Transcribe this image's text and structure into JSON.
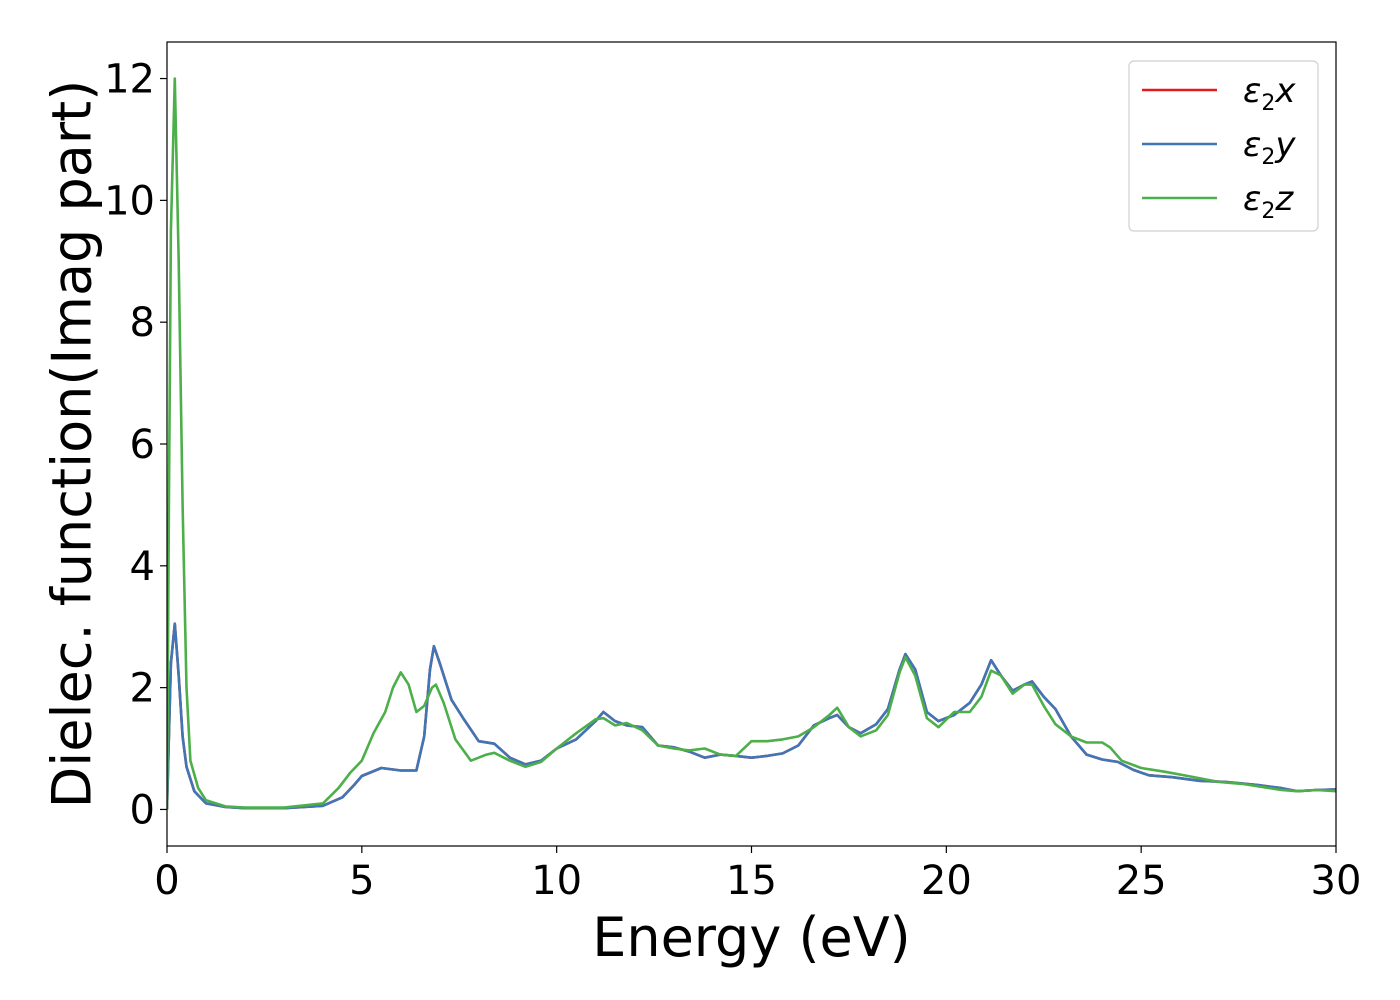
{
  "chart_data": {
    "type": "line",
    "title": "",
    "xlabel": "Energy (eV)",
    "ylabel": "Dielec. function(Imag part)",
    "xlim": [
      0,
      30
    ],
    "ylim": [
      -0.6,
      12.6
    ],
    "xticks": [
      0,
      5,
      10,
      15,
      20,
      25,
      30
    ],
    "yticks": [
      0,
      2,
      4,
      6,
      8,
      10,
      12
    ],
    "grid": false,
    "legend_position": "top-right",
    "series": [
      {
        "name": "ε₂x",
        "legend_main": "ε",
        "legend_sub": "2",
        "legend_suffix": "x",
        "color": "#e41a1c",
        "points": [
          [
            0,
            0
          ],
          [
            0.05,
            1.2
          ],
          [
            0.1,
            2.4
          ],
          [
            0.2,
            3.05
          ],
          [
            0.3,
            2.2
          ],
          [
            0.4,
            1.2
          ],
          [
            0.5,
            0.7
          ],
          [
            0.7,
            0.3
          ],
          [
            1.0,
            0.1
          ],
          [
            1.5,
            0.04
          ],
          [
            2.0,
            0.02
          ],
          [
            3.0,
            0.02
          ],
          [
            4.0,
            0.06
          ],
          [
            4.5,
            0.2
          ],
          [
            4.8,
            0.4
          ],
          [
            5.0,
            0.55
          ],
          [
            5.5,
            0.68
          ],
          [
            6.0,
            0.64
          ],
          [
            6.4,
            0.64
          ],
          [
            6.6,
            1.2
          ],
          [
            6.75,
            2.3
          ],
          [
            6.85,
            2.68
          ],
          [
            7.0,
            2.4
          ],
          [
            7.3,
            1.8
          ],
          [
            7.6,
            1.5
          ],
          [
            8.0,
            1.12
          ],
          [
            8.4,
            1.08
          ],
          [
            8.8,
            0.85
          ],
          [
            9.2,
            0.74
          ],
          [
            9.6,
            0.8
          ],
          [
            10.0,
            1.0
          ],
          [
            10.5,
            1.15
          ],
          [
            11.0,
            1.45
          ],
          [
            11.2,
            1.6
          ],
          [
            11.5,
            1.45
          ],
          [
            11.8,
            1.38
          ],
          [
            12.2,
            1.35
          ],
          [
            12.6,
            1.05
          ],
          [
            13.0,
            1.02
          ],
          [
            13.4,
            0.95
          ],
          [
            13.8,
            0.85
          ],
          [
            14.2,
            0.9
          ],
          [
            14.6,
            0.88
          ],
          [
            15.0,
            0.85
          ],
          [
            15.4,
            0.88
          ],
          [
            15.8,
            0.92
          ],
          [
            16.2,
            1.05
          ],
          [
            16.6,
            1.38
          ],
          [
            17.0,
            1.5
          ],
          [
            17.2,
            1.55
          ],
          [
            17.5,
            1.35
          ],
          [
            17.8,
            1.25
          ],
          [
            18.2,
            1.4
          ],
          [
            18.5,
            1.65
          ],
          [
            18.8,
            2.3
          ],
          [
            18.95,
            2.55
          ],
          [
            19.2,
            2.3
          ],
          [
            19.5,
            1.6
          ],
          [
            19.8,
            1.45
          ],
          [
            20.2,
            1.55
          ],
          [
            20.6,
            1.75
          ],
          [
            20.9,
            2.05
          ],
          [
            21.15,
            2.45
          ],
          [
            21.4,
            2.2
          ],
          [
            21.7,
            1.95
          ],
          [
            22.0,
            2.05
          ],
          [
            22.2,
            2.1
          ],
          [
            22.5,
            1.85
          ],
          [
            22.8,
            1.65
          ],
          [
            23.2,
            1.2
          ],
          [
            23.6,
            0.9
          ],
          [
            24.0,
            0.82
          ],
          [
            24.4,
            0.78
          ],
          [
            24.8,
            0.65
          ],
          [
            25.2,
            0.56
          ],
          [
            25.8,
            0.53
          ],
          [
            26.5,
            0.47
          ],
          [
            27.2,
            0.45
          ],
          [
            28.0,
            0.4
          ],
          [
            28.6,
            0.35
          ],
          [
            29.0,
            0.3
          ],
          [
            29.5,
            0.32
          ],
          [
            30.0,
            0.33
          ]
        ]
      },
      {
        "name": "ε₂y",
        "legend_main": "ε",
        "legend_sub": "2",
        "legend_suffix": "y",
        "color": "#3f76b6",
        "points": [
          [
            0,
            0
          ],
          [
            0.05,
            1.2
          ],
          [
            0.1,
            2.4
          ],
          [
            0.2,
            3.05
          ],
          [
            0.3,
            2.2
          ],
          [
            0.4,
            1.2
          ],
          [
            0.5,
            0.7
          ],
          [
            0.7,
            0.3
          ],
          [
            1.0,
            0.1
          ],
          [
            1.5,
            0.04
          ],
          [
            2.0,
            0.02
          ],
          [
            3.0,
            0.02
          ],
          [
            4.0,
            0.06
          ],
          [
            4.5,
            0.2
          ],
          [
            4.8,
            0.4
          ],
          [
            5.0,
            0.55
          ],
          [
            5.5,
            0.68
          ],
          [
            6.0,
            0.64
          ],
          [
            6.4,
            0.64
          ],
          [
            6.6,
            1.2
          ],
          [
            6.75,
            2.3
          ],
          [
            6.85,
            2.68
          ],
          [
            7.0,
            2.4
          ],
          [
            7.3,
            1.8
          ],
          [
            7.6,
            1.5
          ],
          [
            8.0,
            1.12
          ],
          [
            8.4,
            1.08
          ],
          [
            8.8,
            0.85
          ],
          [
            9.2,
            0.74
          ],
          [
            9.6,
            0.8
          ],
          [
            10.0,
            1.0
          ],
          [
            10.5,
            1.15
          ],
          [
            11.0,
            1.45
          ],
          [
            11.2,
            1.6
          ],
          [
            11.5,
            1.45
          ],
          [
            11.8,
            1.38
          ],
          [
            12.2,
            1.35
          ],
          [
            12.6,
            1.05
          ],
          [
            13.0,
            1.02
          ],
          [
            13.4,
            0.95
          ],
          [
            13.8,
            0.85
          ],
          [
            14.2,
            0.9
          ],
          [
            14.6,
            0.88
          ],
          [
            15.0,
            0.85
          ],
          [
            15.4,
            0.88
          ],
          [
            15.8,
            0.92
          ],
          [
            16.2,
            1.05
          ],
          [
            16.6,
            1.38
          ],
          [
            17.0,
            1.5
          ],
          [
            17.2,
            1.55
          ],
          [
            17.5,
            1.35
          ],
          [
            17.8,
            1.25
          ],
          [
            18.2,
            1.4
          ],
          [
            18.5,
            1.65
          ],
          [
            18.8,
            2.3
          ],
          [
            18.95,
            2.55
          ],
          [
            19.2,
            2.3
          ],
          [
            19.5,
            1.6
          ],
          [
            19.8,
            1.45
          ],
          [
            20.2,
            1.55
          ],
          [
            20.6,
            1.75
          ],
          [
            20.9,
            2.05
          ],
          [
            21.15,
            2.45
          ],
          [
            21.4,
            2.2
          ],
          [
            21.7,
            1.95
          ],
          [
            22.0,
            2.05
          ],
          [
            22.2,
            2.1
          ],
          [
            22.5,
            1.85
          ],
          [
            22.8,
            1.65
          ],
          [
            23.2,
            1.2
          ],
          [
            23.6,
            0.9
          ],
          [
            24.0,
            0.82
          ],
          [
            24.4,
            0.78
          ],
          [
            24.8,
            0.65
          ],
          [
            25.2,
            0.56
          ],
          [
            25.8,
            0.53
          ],
          [
            26.5,
            0.47
          ],
          [
            27.2,
            0.45
          ],
          [
            28.0,
            0.4
          ],
          [
            28.6,
            0.35
          ],
          [
            29.0,
            0.3
          ],
          [
            29.5,
            0.32
          ],
          [
            30.0,
            0.33
          ]
        ]
      },
      {
        "name": "ε₂z",
        "legend_main": "ε",
        "legend_sub": "2",
        "legend_suffix": "z",
        "color": "#4daf4a",
        "points": [
          [
            0,
            0
          ],
          [
            0.05,
            5.0
          ],
          [
            0.1,
            9.5
          ],
          [
            0.2,
            12.0
          ],
          [
            0.3,
            9.0
          ],
          [
            0.4,
            5.0
          ],
          [
            0.5,
            2.0
          ],
          [
            0.6,
            0.8
          ],
          [
            0.8,
            0.35
          ],
          [
            1.0,
            0.15
          ],
          [
            1.5,
            0.05
          ],
          [
            2.0,
            0.03
          ],
          [
            3.0,
            0.03
          ],
          [
            4.0,
            0.1
          ],
          [
            4.4,
            0.35
          ],
          [
            4.7,
            0.6
          ],
          [
            5.0,
            0.8
          ],
          [
            5.3,
            1.25
          ],
          [
            5.6,
            1.6
          ],
          [
            5.8,
            2.0
          ],
          [
            6.0,
            2.25
          ],
          [
            6.2,
            2.05
          ],
          [
            6.4,
            1.6
          ],
          [
            6.6,
            1.7
          ],
          [
            6.8,
            2.0
          ],
          [
            6.9,
            2.05
          ],
          [
            7.1,
            1.75
          ],
          [
            7.4,
            1.15
          ],
          [
            7.8,
            0.8
          ],
          [
            8.2,
            0.9
          ],
          [
            8.4,
            0.93
          ],
          [
            8.8,
            0.8
          ],
          [
            9.2,
            0.7
          ],
          [
            9.6,
            0.78
          ],
          [
            10.0,
            1.0
          ],
          [
            10.5,
            1.25
          ],
          [
            11.0,
            1.48
          ],
          [
            11.2,
            1.5
          ],
          [
            11.5,
            1.38
          ],
          [
            11.8,
            1.42
          ],
          [
            12.2,
            1.3
          ],
          [
            12.6,
            1.05
          ],
          [
            13.0,
            1.0
          ],
          [
            13.4,
            0.97
          ],
          [
            13.8,
            1.0
          ],
          [
            14.2,
            0.9
          ],
          [
            14.6,
            0.88
          ],
          [
            15.0,
            1.12
          ],
          [
            15.4,
            1.12
          ],
          [
            15.8,
            1.15
          ],
          [
            16.2,
            1.2
          ],
          [
            16.6,
            1.35
          ],
          [
            17.0,
            1.55
          ],
          [
            17.2,
            1.67
          ],
          [
            17.5,
            1.35
          ],
          [
            17.8,
            1.2
          ],
          [
            18.2,
            1.3
          ],
          [
            18.5,
            1.55
          ],
          [
            18.8,
            2.25
          ],
          [
            18.95,
            2.5
          ],
          [
            19.2,
            2.2
          ],
          [
            19.5,
            1.5
          ],
          [
            19.8,
            1.35
          ],
          [
            20.2,
            1.6
          ],
          [
            20.6,
            1.6
          ],
          [
            20.9,
            1.85
          ],
          [
            21.15,
            2.28
          ],
          [
            21.4,
            2.2
          ],
          [
            21.7,
            1.9
          ],
          [
            22.0,
            2.05
          ],
          [
            22.2,
            2.05
          ],
          [
            22.5,
            1.7
          ],
          [
            22.8,
            1.4
          ],
          [
            23.2,
            1.2
          ],
          [
            23.6,
            1.1
          ],
          [
            24.0,
            1.1
          ],
          [
            24.2,
            1.02
          ],
          [
            24.5,
            0.8
          ],
          [
            25.0,
            0.68
          ],
          [
            25.6,
            0.62
          ],
          [
            26.2,
            0.55
          ],
          [
            27.0,
            0.45
          ],
          [
            27.6,
            0.42
          ],
          [
            28.0,
            0.38
          ],
          [
            28.6,
            0.32
          ],
          [
            29.0,
            0.3
          ],
          [
            29.5,
            0.32
          ],
          [
            30.0,
            0.3
          ]
        ]
      }
    ]
  }
}
